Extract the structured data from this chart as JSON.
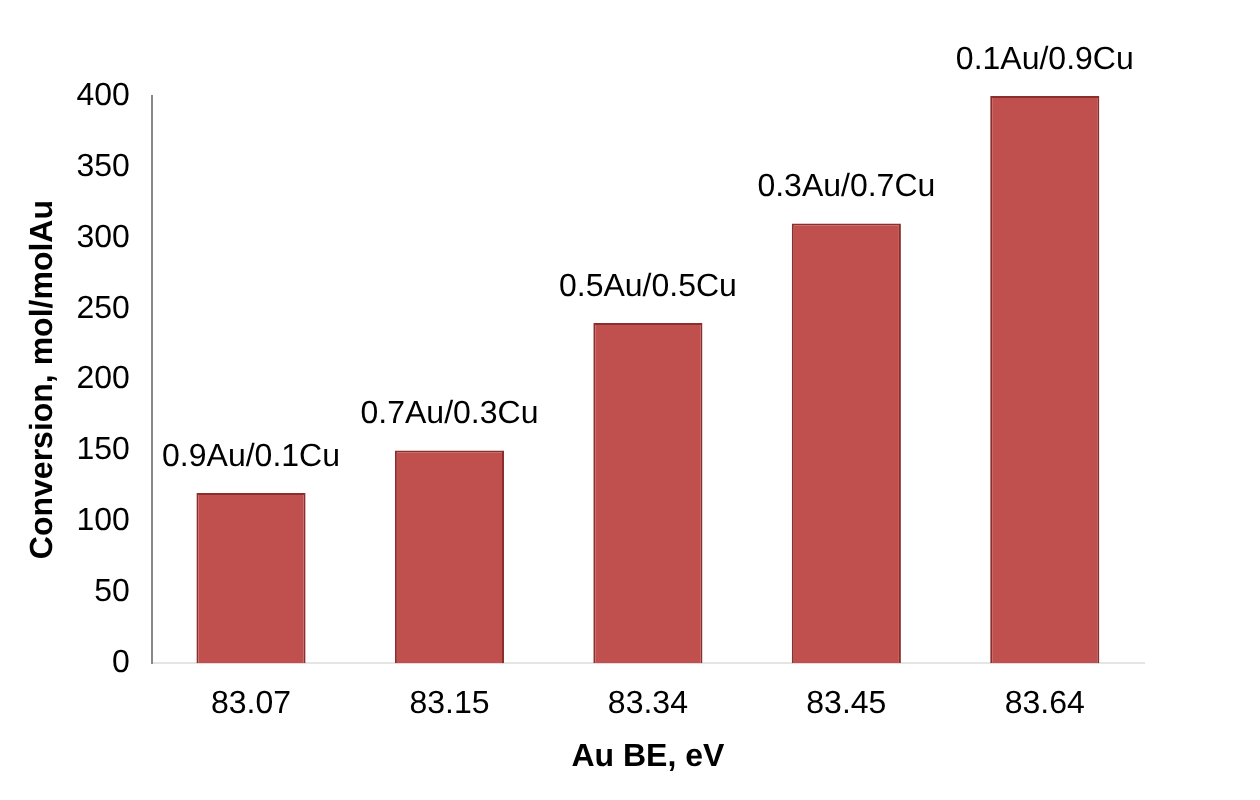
{
  "chart_data": {
    "type": "bar",
    "xlabel": "Au BE, eV",
    "ylabel": "Conversion, mol/molAu",
    "categories": [
      "83.07",
      "83.15",
      "83.34",
      "83.45",
      "83.64"
    ],
    "values": [
      120,
      150,
      240,
      310,
      400
    ],
    "color": "#c0504d",
    "ylim": [
      0,
      400
    ],
    "yticks": [
      0,
      50,
      100,
      150,
      200,
      250,
      300,
      350,
      400
    ],
    "grid": false,
    "legend": false,
    "annotations": [
      {
        "text": "0.9Au/0.1Cu",
        "x": "83.07",
        "y": 120
      },
      {
        "text": "0.7Au/0.3Cu",
        "x": "83.15",
        "y": 150
      },
      {
        "text": "0.5Au/0.5Cu",
        "x": "83.34",
        "y": 240
      },
      {
        "text": "0.3Au/0.7Cu",
        "x": "83.45",
        "y": 310
      },
      {
        "text": "0.1Au/0.9Cu",
        "x": "83.64",
        "y": 400
      }
    ]
  }
}
